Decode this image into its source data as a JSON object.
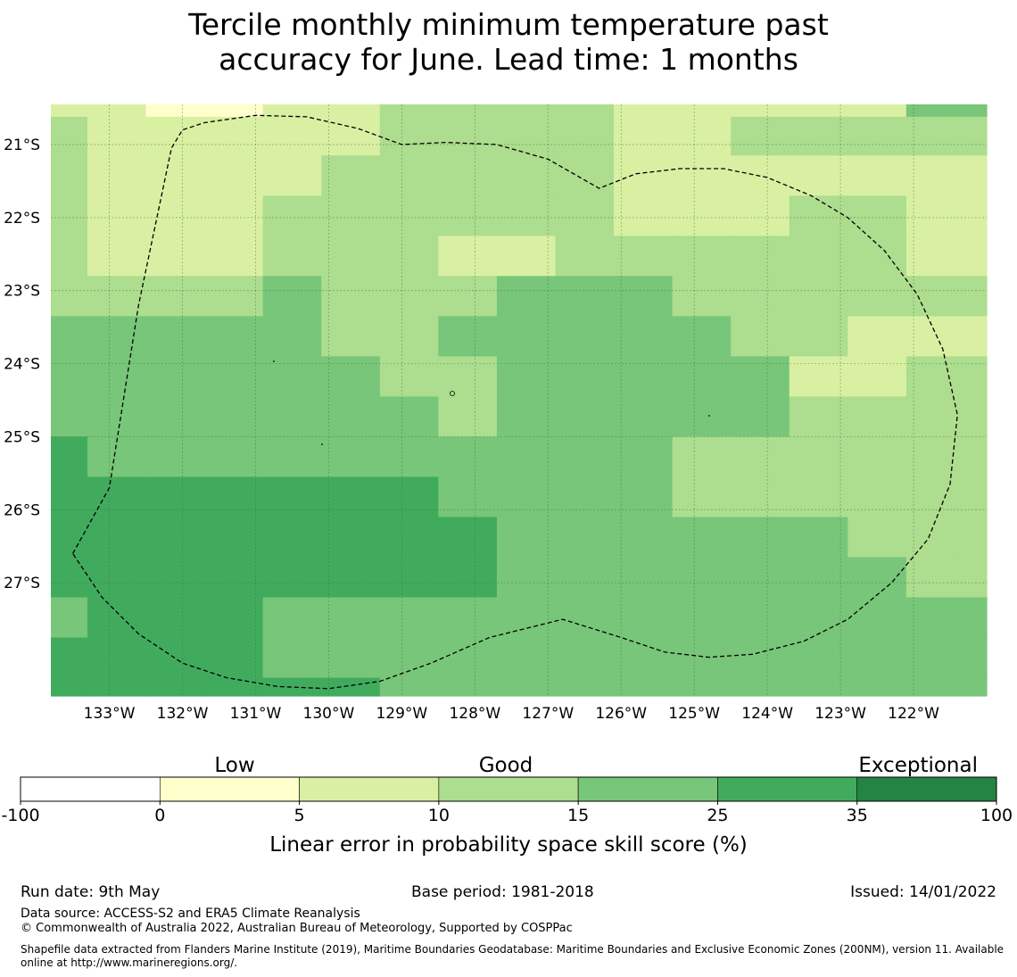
{
  "title_line1": "Tercile monthly minimum temperature past",
  "title_line2": "accuracy for June. Lead time: 1 months",
  "map": {
    "lon_labels": [
      "133°W",
      "132°W",
      "131°W",
      "130°W",
      "129°W",
      "128°W",
      "127°W",
      "126°W",
      "125°W",
      "124°W",
      "123°W",
      "122°W"
    ],
    "lat_labels": [
      "21°S",
      "22°S",
      "23°S",
      "24°S",
      "25°S",
      "26°S",
      "27°S"
    ],
    "col_edges": [
      -133.8,
      -133.3,
      -132.5,
      -131.7,
      -130.9,
      -130.1,
      -129.3,
      -128.5,
      -127.7,
      -126.9,
      -126.1,
      -125.3,
      -124.5,
      -123.7,
      -122.9,
      -122.1,
      -121.4,
      -121.0
    ],
    "row_edges": [
      -20.45,
      -20.62,
      -21.15,
      -21.7,
      -22.25,
      -22.8,
      -23.35,
      -23.9,
      -24.45,
      -25.0,
      -25.55,
      -26.1,
      -26.65,
      -27.2,
      -27.75,
      -28.3,
      -28.55
    ],
    "grid": [
      [
        2,
        2,
        1,
        1,
        2,
        2,
        3,
        3,
        3,
        3,
        2,
        2,
        2,
        2,
        2,
        4,
        4
      ],
      [
        3,
        2,
        2,
        2,
        2,
        2,
        3,
        3,
        3,
        3,
        2,
        2,
        3,
        3,
        3,
        3,
        3
      ],
      [
        3,
        2,
        2,
        2,
        2,
        3,
        3,
        3,
        3,
        3,
        2,
        2,
        2,
        2,
        2,
        2,
        2
      ],
      [
        3,
        2,
        2,
        2,
        3,
        3,
        3,
        3,
        3,
        3,
        2,
        2,
        2,
        3,
        3,
        2,
        2
      ],
      [
        3,
        2,
        2,
        2,
        3,
        3,
        3,
        2,
        2,
        3,
        3,
        3,
        3,
        3,
        3,
        2,
        2
      ],
      [
        3,
        3,
        3,
        3,
        4,
        3,
        3,
        3,
        4,
        4,
        4,
        3,
        3,
        3,
        3,
        3,
        3
      ],
      [
        4,
        4,
        4,
        4,
        4,
        3,
        3,
        4,
        4,
        4,
        4,
        4,
        3,
        3,
        2,
        2,
        2
      ],
      [
        4,
        4,
        4,
        4,
        4,
        4,
        3,
        3,
        4,
        4,
        4,
        4,
        4,
        2,
        2,
        3,
        3
      ],
      [
        4,
        4,
        4,
        4,
        4,
        4,
        4,
        3,
        4,
        4,
        4,
        4,
        4,
        3,
        3,
        3,
        3
      ],
      [
        5,
        4,
        4,
        4,
        4,
        4,
        4,
        4,
        4,
        4,
        4,
        3,
        3,
        3,
        3,
        3,
        3
      ],
      [
        5,
        5,
        5,
        5,
        5,
        5,
        5,
        4,
        4,
        4,
        4,
        3,
        3,
        3,
        3,
        3,
        3
      ],
      [
        5,
        5,
        5,
        5,
        5,
        5,
        5,
        5,
        4,
        4,
        4,
        4,
        4,
        4,
        3,
        3,
        3
      ],
      [
        5,
        5,
        5,
        5,
        5,
        5,
        5,
        5,
        4,
        4,
        4,
        4,
        4,
        4,
        4,
        3,
        3
      ],
      [
        4,
        5,
        5,
        5,
        4,
        4,
        4,
        4,
        4,
        4,
        4,
        4,
        4,
        4,
        4,
        4,
        4
      ],
      [
        5,
        5,
        5,
        5,
        4,
        4,
        4,
        4,
        4,
        4,
        4,
        4,
        4,
        4,
        4,
        4,
        4
      ],
      [
        5,
        5,
        5,
        5,
        5,
        5,
        4,
        4,
        4,
        4,
        4,
        4,
        4,
        4,
        4,
        4,
        4
      ]
    ],
    "palette": [
      "#ffffff",
      "#ffffcc",
      "#d9f0a3",
      "#addd8e",
      "#78c679",
      "#41ab5d",
      "#238443"
    ],
    "boundary": [
      [
        -133.5,
        -26.6
      ],
      [
        -133.0,
        -25.7
      ],
      [
        -132.6,
        -23.2
      ],
      [
        -132.15,
        -21.05
      ],
      [
        -132.0,
        -20.8
      ],
      [
        -131.7,
        -20.7
      ],
      [
        -131.0,
        -20.6
      ],
      [
        -130.3,
        -20.62
      ],
      [
        -129.6,
        -20.78
      ],
      [
        -129.0,
        -21.0
      ],
      [
        -128.4,
        -20.97
      ],
      [
        -127.7,
        -21.0
      ],
      [
        -127.0,
        -21.2
      ],
      [
        -126.3,
        -21.6
      ],
      [
        -125.8,
        -21.4
      ],
      [
        -125.2,
        -21.33
      ],
      [
        -124.6,
        -21.33
      ],
      [
        -124.0,
        -21.45
      ],
      [
        -123.4,
        -21.7
      ],
      [
        -122.9,
        -22.0
      ],
      [
        -122.4,
        -22.45
      ],
      [
        -121.95,
        -23.05
      ],
      [
        -121.6,
        -23.8
      ],
      [
        -121.4,
        -24.7
      ],
      [
        -121.5,
        -25.65
      ],
      [
        -121.8,
        -26.4
      ],
      [
        -122.3,
        -27.0
      ],
      [
        -122.9,
        -27.5
      ],
      [
        -123.5,
        -27.8
      ],
      [
        -124.2,
        -27.98
      ],
      [
        -124.8,
        -28.02
      ],
      [
        -125.4,
        -27.95
      ],
      [
        -126.0,
        -27.75
      ],
      [
        -126.8,
        -27.5
      ],
      [
        -127.8,
        -27.75
      ],
      [
        -128.6,
        -28.1
      ],
      [
        -129.3,
        -28.35
      ],
      [
        -130.0,
        -28.45
      ],
      [
        -130.7,
        -28.42
      ],
      [
        -131.4,
        -28.3
      ],
      [
        -132.0,
        -28.1
      ],
      [
        -132.6,
        -27.7
      ],
      [
        -133.1,
        -27.2
      ],
      [
        -133.5,
        -26.6
      ]
    ]
  },
  "colorbar": {
    "words": [
      "Low",
      "Good",
      "Exceptional"
    ],
    "ticks": [
      "-100",
      "0",
      "5",
      "10",
      "15",
      "25",
      "35",
      "100"
    ],
    "colors": [
      "#ffffff",
      "#ffffcc",
      "#d9f0a3",
      "#addd8e",
      "#78c679",
      "#41ab5d",
      "#238443"
    ],
    "label": "Linear error in probability space skill score (%)"
  },
  "footer": {
    "run_date": "Run date: 9th May",
    "base_period": "Base period: 1981-2018",
    "issued": "Issued: 14/01/2022",
    "data_source": "Data source: ACCESS-S2 and ERA5 Climate Reanalysis",
    "copyright": "© Commonwealth of Australia 2022, Australian Bureau of Meteorology, Supported by COSPPac",
    "shapefile_line1": "Shapefile data extracted from Flanders Marine Institute (2019), Maritime Boundaries Geodatabase: Maritime Boundaries and Exclusive Economic Zones (200NM), version 11. Available",
    "shapefile_line2": "online at http://www.marineregions.org/."
  }
}
